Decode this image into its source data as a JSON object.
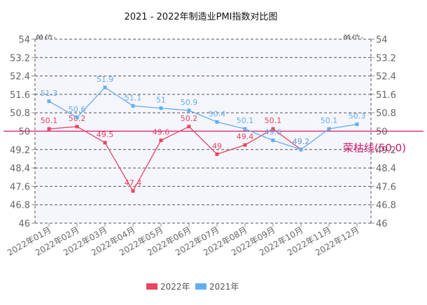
{
  "chart_data": {
    "type": "line",
    "title": "2021 - 2022年制造业PMI指数对比图",
    "y_unit_left": "单位:",
    "y_unit_right": "单位:",
    "categories": [
      "2022年01月",
      "2022年02月",
      "2022年03月",
      "2022年04月",
      "2022年05月",
      "2022年06月",
      "2022年07月",
      "2022年08月",
      "2022年09月",
      "2022年10月",
      "2022年11月",
      "2022年12月"
    ],
    "series": [
      {
        "name": "2022年",
        "color": "#e8455f",
        "values": [
          50.1,
          50.2,
          49.5,
          47.4,
          49.6,
          50.2,
          49.0,
          49.4,
          50.1,
          49.2,
          null,
          null
        ]
      },
      {
        "name": "2021年",
        "color": "#63aef0",
        "values": [
          51.3,
          50.6,
          51.9,
          51.1,
          51.0,
          50.9,
          50.4,
          50.1,
          49.6,
          49.2,
          50.1,
          50.3
        ]
      }
    ],
    "point_labels": {
      "2022年": [
        "50.1",
        "50.2",
        "49.5",
        "47.4",
        "49.6",
        "50.2",
        "49",
        "49.4",
        "50.1",
        "49.2",
        "",
        ""
      ],
      "2021年": [
        "51.3",
        "50.6",
        "51.9",
        "51.1",
        "51",
        "50.9",
        "50.4",
        "50.1",
        "49.6",
        "49.2",
        "50.1",
        "50.3"
      ]
    },
    "y_ticks": [
      "54",
      "53.2",
      "52.4",
      "51.6",
      "50.8",
      "50",
      "49.2",
      "48.4",
      "47.6",
      "46.8",
      "46"
    ],
    "ylim": [
      46,
      54
    ],
    "reference_line": {
      "value": 50.0,
      "label": "荣枯线(50.0)",
      "color": "#d6186e"
    },
    "legend_position": "bottom-center",
    "plot_background": "#f5f5fc"
  }
}
